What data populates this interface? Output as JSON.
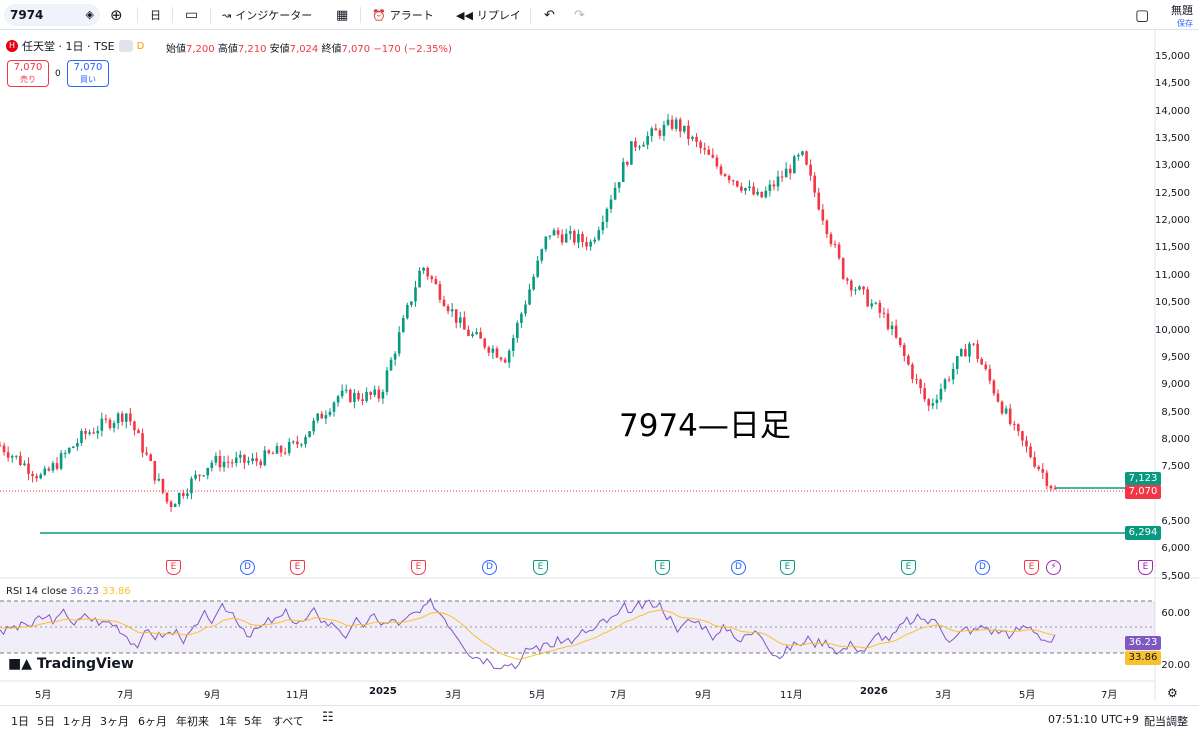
{
  "toolbar": {
    "symbol": "7974",
    "interval": "日",
    "indicators_label": "インジケーター",
    "alert_label": "アラート",
    "replay_label": "リプレイ",
    "layout_name": "無題",
    "save_label": "保存"
  },
  "legend": {
    "name": "任天堂 · 1日 · TSE",
    "open_label": "始値",
    "open": "7,200",
    "high_label": "高値",
    "high": "7,210",
    "low_label": "安値",
    "low": "7,024",
    "close_label": "終値",
    "close": "7,070",
    "change": "−170 (−2.35%)",
    "sell_price": "7,070",
    "sell_label": "売り",
    "buy_price": "7,070",
    "buy_label": "買い",
    "spread": "0"
  },
  "chart_title": "7974—日足",
  "price_axis": [
    "15,000",
    "14,500",
    "14,000",
    "13,500",
    "13,000",
    "12,500",
    "12,000",
    "11,500",
    "11,000",
    "10,500",
    "10,000",
    "9,500",
    "9,000",
    "8,500",
    "8,000",
    "7,500",
    "6,500",
    "6,000",
    "5,500"
  ],
  "price_tags": {
    "upper_line": "7,123",
    "last_price": "7,070",
    "lower_line": "6,294"
  },
  "rsi": {
    "label": "RSI 14 close",
    "value": "36.23",
    "ma_value": "33.86",
    "axis": [
      "60.00",
      "20.00"
    ]
  },
  "time_axis": [
    "5月",
    "7月",
    "9月",
    "11月",
    "2025",
    "3月",
    "5月",
    "7月",
    "9月",
    "11月",
    "2026",
    "3月",
    "5月",
    "7月"
  ],
  "events": [
    "E",
    "D",
    "E",
    "E",
    "D",
    "E",
    "E",
    "D",
    "E",
    "E",
    "D",
    "E"
  ],
  "bottom_bar": {
    "ranges": [
      "1日",
      "5日",
      "1ヶ月",
      "3ヶ月",
      "6ヶ月",
      "年初来",
      "1年",
      "5年",
      "すべて"
    ],
    "clock": "07:51:10 UTC+9",
    "adjust_label": "配当調整"
  },
  "brand": "TradingView",
  "colors": {
    "up": "#089981",
    "down": "#f23645",
    "line": "#089981",
    "rsi": "#7e57c2",
    "rsi_ma": "#fbc02d"
  },
  "chart_data": {
    "type": "candlestick",
    "title": "7974—日足",
    "ylim": [
      5500,
      15000
    ],
    "x": [
      "2024-04",
      "2024-05",
      "2024-06",
      "2024-07",
      "2024-08",
      "2024-09",
      "2024-10",
      "2024-11",
      "2024-12",
      "2025-01",
      "2025-02",
      "2025-03",
      "2025-04",
      "2025-05",
      "2025-06",
      "2025-07",
      "2025-08",
      "2025-09",
      "2025-10",
      "2025-11",
      "2025-12",
      "2026-01",
      "2026-02",
      "2026-03",
      "2026-04",
      "2026-05"
    ],
    "series": [
      {
        "values": [
          7900,
          7300,
          8100,
          8500,
          6800,
          7600,
          7600,
          7900,
          8800,
          8800,
          11200,
          10000,
          9500,
          11800,
          11600,
          13400,
          13800,
          13000,
          12400,
          13200,
          11000,
          10200,
          8600,
          9800,
          8200,
          7070
        ]
      }
    ]
  }
}
